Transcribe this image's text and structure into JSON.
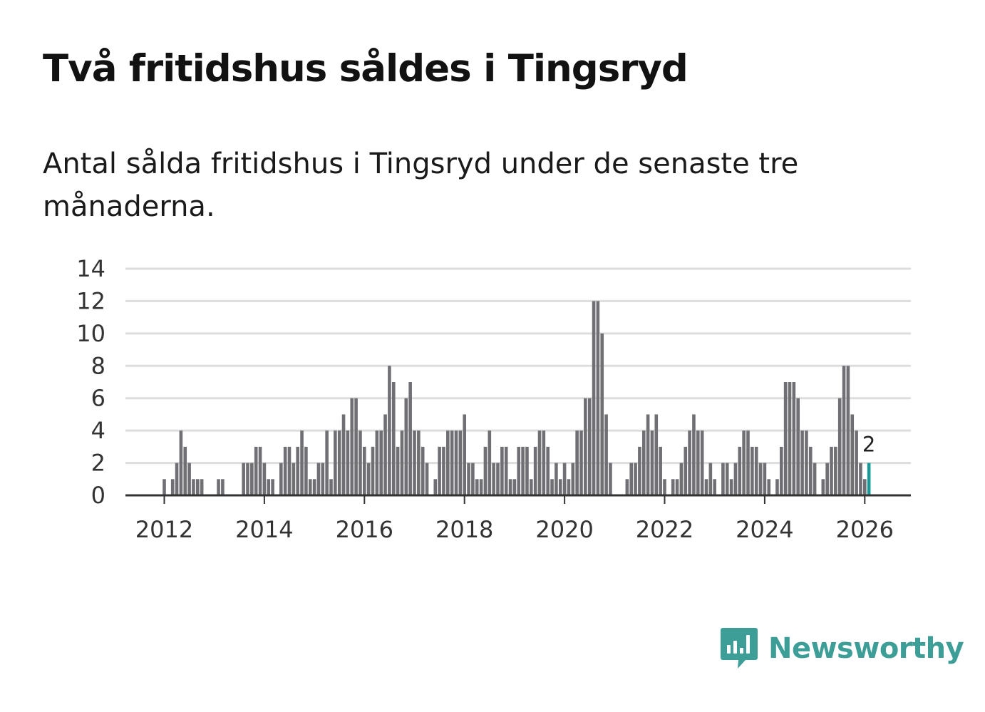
{
  "title": "Två fritidshus såldes i Tingsryd",
  "subtitle": "Antal sålda fritidshus i Tingsryd under de senaste tre månaderna.",
  "brand": {
    "name": "Newsworthy",
    "color": "#3d9e98",
    "icon": "chart-speech-bubble-icon"
  },
  "colors": {
    "bar": "#6f6f74",
    "highlight": "#1a9a96",
    "grid": "#dddddd",
    "axis": "#333333"
  },
  "chart_data": {
    "type": "bar",
    "interval": "monthly",
    "start": "2012-01",
    "ylim": [
      0,
      14
    ],
    "yticks": [
      0,
      2,
      4,
      6,
      8,
      10,
      12,
      14
    ],
    "xticks": [
      "2012",
      "2014",
      "2016",
      "2018",
      "2020",
      "2022",
      "2024",
      "2026"
    ],
    "grid": true,
    "xlabel": "",
    "ylabel": "",
    "highlight_label": "2",
    "values": [
      1,
      0,
      1,
      2,
      4,
      3,
      2,
      1,
      1,
      1,
      0,
      0,
      0,
      1,
      1,
      0,
      0,
      0,
      0,
      2,
      2,
      2,
      3,
      3,
      2,
      1,
      1,
      0,
      2,
      3,
      3,
      2,
      3,
      4,
      3,
      1,
      1,
      2,
      2,
      4,
      1,
      4,
      4,
      5,
      4,
      6,
      6,
      4,
      3,
      2,
      3,
      4,
      4,
      5,
      8,
      7,
      3,
      4,
      6,
      7,
      4,
      4,
      3,
      2,
      0,
      1,
      3,
      3,
      4,
      4,
      4,
      4,
      5,
      2,
      2,
      1,
      1,
      3,
      4,
      2,
      2,
      3,
      3,
      1,
      1,
      3,
      3,
      3,
      1,
      3,
      4,
      4,
      3,
      1,
      2,
      1,
      2,
      1,
      2,
      4,
      4,
      6,
      6,
      12,
      12,
      10,
      5,
      2,
      0,
      0,
      0,
      1,
      2,
      2,
      3,
      4,
      5,
      4,
      5,
      3,
      1,
      0,
      1,
      1,
      2,
      3,
      4,
      5,
      4,
      4,
      1,
      2,
      1,
      0,
      2,
      2,
      1,
      2,
      3,
      4,
      4,
      3,
      3,
      2,
      2,
      1,
      0,
      1,
      3,
      7,
      7,
      7,
      6,
      4,
      4,
      3,
      2,
      0,
      1,
      2,
      3,
      3,
      6,
      8,
      8,
      5,
      4,
      2,
      1,
      2
    ]
  }
}
